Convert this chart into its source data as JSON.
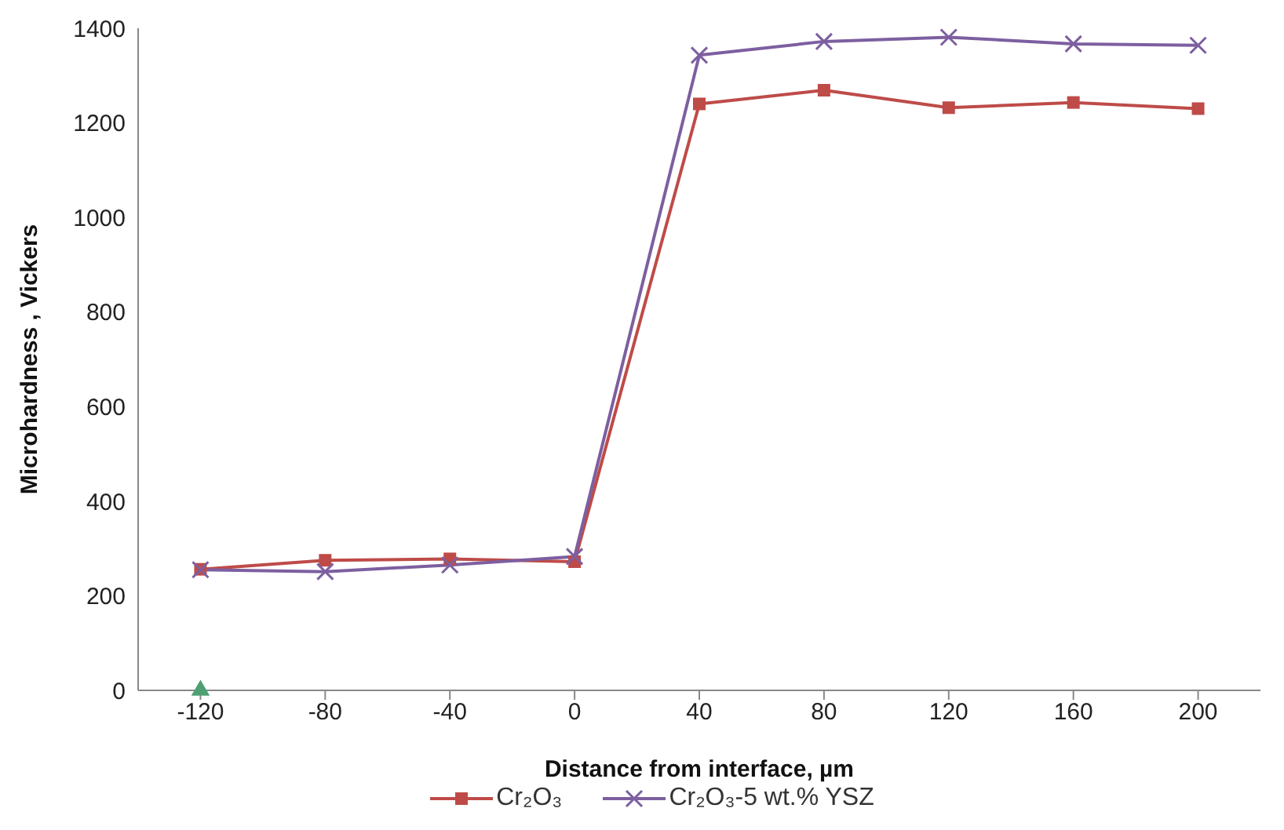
{
  "chart_data": {
    "type": "line",
    "xlabel": "Distance from interface, µm",
    "ylabel": "Microhardness , Vickers",
    "x": [
      -120,
      -80,
      -40,
      0,
      40,
      80,
      120,
      160,
      200
    ],
    "xlim": [
      -140,
      220
    ],
    "xticks": [
      -120,
      -80,
      -40,
      0,
      40,
      80,
      120,
      160,
      200
    ],
    "series": [
      {
        "name": "Cr₂O₃",
        "color": "#be4b48",
        "marker": "square",
        "values": [
          256,
          275,
          278,
          272,
          1240,
          1269,
          1232,
          1243,
          1230
        ]
      },
      {
        "name": "Cr₂O₃-5 wt.% YSZ",
        "color": "#7d5fa0",
        "marker": "cross",
        "values": [
          255,
          251,
          265,
          283,
          1343,
          1372,
          1381,
          1367,
          1364
        ]
      },
      {
        "color": "#4ea072",
        "marker": "triangle",
        "values": [
          0,
          null,
          null,
          null,
          null,
          null,
          null,
          null,
          null
        ]
      }
    ],
    "ylim": [
      0,
      1400
    ],
    "yticks": [
      0,
      200,
      400,
      600,
      800,
      1000,
      1200,
      1400
    ],
    "grid": false,
    "legend": "bottom"
  }
}
